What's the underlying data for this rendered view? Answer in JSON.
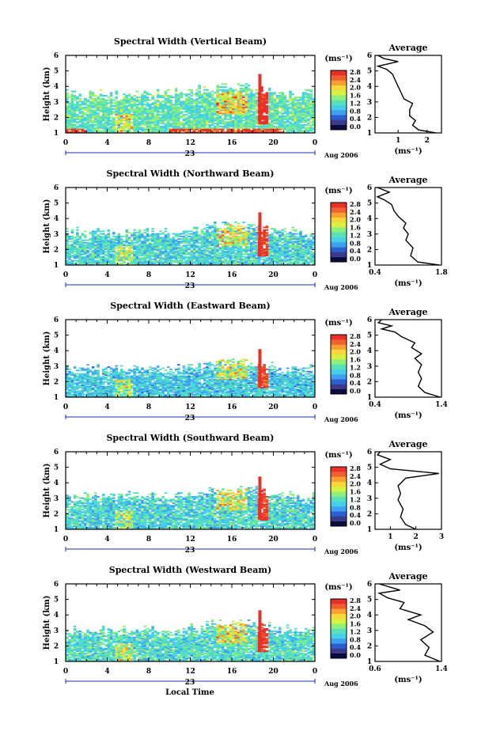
{
  "figure": {
    "x_axis_label": "Local Time",
    "date_label": "Aug 2006",
    "day_label": "23",
    "colorbar_unit": "(ms⁻¹)",
    "average_title": "Average",
    "average_unit": "(ms⁻¹)"
  },
  "colormap": [
    "#0a0a3c",
    "#3a3a8c",
    "#2a5fd0",
    "#3fa0f0",
    "#46d0e8",
    "#58e0b8",
    "#8ef07a",
    "#d8f040",
    "#f8d838",
    "#f8a030",
    "#f06030",
    "#e83028"
  ],
  "chart_data": [
    {
      "type": "heatmap",
      "title": "Spectral Width (Vertical Beam)",
      "ylabel": "Height (km)",
      "xlim": [
        0,
        24
      ],
      "ylim": [
        1,
        6
      ],
      "x_ticks": [
        "0",
        "4",
        "8",
        "12",
        "16",
        "20",
        "0"
      ],
      "y_ticks": [
        "1",
        "2",
        "3",
        "4",
        "5",
        "6"
      ],
      "colorbar": {
        "range": [
          0,
          2.8
        ],
        "ticks": [
          "0.0",
          "0.4",
          "0.8",
          "1.2",
          "1.6",
          "2.0",
          "2.4",
          "2.8"
        ]
      },
      "profile": {
        "title": "Average",
        "xlim": [
          0.2,
          2.5
        ],
        "x_ticks": [
          "1",
          "2"
        ],
        "y_ticks": [
          "1",
          "2",
          "3",
          "4",
          "5",
          "6"
        ],
        "points": [
          [
            2.3,
            1.0
          ],
          [
            1.7,
            1.2
          ],
          [
            1.5,
            1.5
          ],
          [
            1.6,
            1.8
          ],
          [
            1.4,
            2.1
          ],
          [
            1.4,
            2.5
          ],
          [
            1.5,
            2.9
          ],
          [
            1.2,
            3.2
          ],
          [
            1.1,
            3.6
          ],
          [
            1.0,
            4.0
          ],
          [
            0.9,
            4.4
          ],
          [
            0.8,
            4.8
          ],
          [
            0.6,
            5.1
          ],
          [
            0.3,
            5.3
          ],
          [
            1.0,
            5.6
          ],
          [
            0.5,
            5.8
          ],
          [
            0.3,
            6.0
          ]
        ]
      }
    },
    {
      "type": "heatmap",
      "title": "Spectral Width (Northward Beam)",
      "ylabel": "Height (km)",
      "xlim": [
        0,
        24
      ],
      "ylim": [
        1,
        6
      ],
      "x_ticks": [
        "0",
        "4",
        "8",
        "12",
        "16",
        "20",
        "0"
      ],
      "y_ticks": [
        "1",
        "2",
        "3",
        "4",
        "5",
        "6"
      ],
      "colorbar": {
        "range": [
          0,
          2.8
        ],
        "ticks": [
          "0.0",
          "0.4",
          "0.8",
          "1.2",
          "1.6",
          "2.0",
          "2.4",
          "2.8"
        ]
      },
      "profile": {
        "title": "Average",
        "xlim": [
          0.4,
          1.8
        ],
        "x_ticks": [
          "0.4",
          "1.8"
        ],
        "y_ticks": [
          "1",
          "2",
          "3",
          "4",
          "5",
          "6"
        ],
        "points": [
          [
            1.75,
            1.0
          ],
          [
            1.3,
            1.2
          ],
          [
            1.15,
            1.6
          ],
          [
            1.2,
            2.1
          ],
          [
            1.05,
            2.6
          ],
          [
            1.1,
            3.0
          ],
          [
            1.0,
            3.4
          ],
          [
            1.05,
            3.7
          ],
          [
            0.9,
            4.1
          ],
          [
            0.8,
            4.5
          ],
          [
            0.75,
            4.9
          ],
          [
            0.6,
            5.2
          ],
          [
            0.45,
            5.4
          ],
          [
            0.7,
            5.7
          ],
          [
            0.45,
            6.0
          ]
        ]
      }
    },
    {
      "type": "heatmap",
      "title": "Spectral Width (Eastward Beam)",
      "ylabel": "Height (km)",
      "xlim": [
        0,
        24
      ],
      "ylim": [
        1,
        6
      ],
      "x_ticks": [
        "0",
        "4",
        "8",
        "12",
        "16",
        "20",
        "0"
      ],
      "y_ticks": [
        "1",
        "2",
        "3",
        "4",
        "5",
        "6"
      ],
      "colorbar": {
        "range": [
          0,
          2.8
        ],
        "ticks": [
          "0.0",
          "0.4",
          "0.8",
          "1.2",
          "1.6",
          "2.0",
          "2.4",
          "2.8"
        ]
      },
      "profile": {
        "title": "Average",
        "xlim": [
          0.4,
          1.4
        ],
        "x_ticks": [
          "0.4",
          "1.4"
        ],
        "y_ticks": [
          "1",
          "2",
          "3",
          "4",
          "5",
          "6"
        ],
        "points": [
          [
            1.38,
            1.0
          ],
          [
            1.15,
            1.3
          ],
          [
            1.05,
            1.7
          ],
          [
            1.1,
            2.2
          ],
          [
            1.05,
            2.6
          ],
          [
            1.1,
            3.1
          ],
          [
            1.0,
            3.5
          ],
          [
            1.1,
            3.8
          ],
          [
            0.95,
            4.2
          ],
          [
            1.0,
            4.5
          ],
          [
            0.8,
            4.9
          ],
          [
            0.7,
            5.2
          ],
          [
            0.5,
            5.4
          ],
          [
            0.65,
            5.6
          ],
          [
            0.45,
            5.8
          ],
          [
            0.5,
            6.0
          ]
        ]
      }
    },
    {
      "type": "heatmap",
      "title": "Spectral Width (Southward Beam)",
      "ylabel": "Height (km)",
      "xlim": [
        0,
        24
      ],
      "ylim": [
        1,
        6
      ],
      "x_ticks": [
        "0",
        "4",
        "8",
        "12",
        "16",
        "20",
        "0"
      ],
      "y_ticks": [
        "1",
        "2",
        "3",
        "4",
        "5",
        "6"
      ],
      "colorbar": {
        "range": [
          0,
          2.8
        ],
        "ticks": [
          "0.0",
          "0.4",
          "0.8",
          "1.2",
          "1.6",
          "2.0",
          "2.4",
          "2.8"
        ]
      },
      "profile": {
        "title": "Average",
        "xlim": [
          0.4,
          3.0
        ],
        "x_ticks": [
          "1",
          "2",
          "3"
        ],
        "y_ticks": [
          "1",
          "2",
          "3",
          "4",
          "5",
          "6"
        ],
        "points": [
          [
            2.0,
            1.0
          ],
          [
            1.6,
            1.3
          ],
          [
            1.4,
            1.8
          ],
          [
            1.5,
            2.3
          ],
          [
            1.3,
            2.9
          ],
          [
            1.4,
            3.3
          ],
          [
            1.3,
            3.8
          ],
          [
            1.6,
            4.3
          ],
          [
            2.9,
            4.6
          ],
          [
            1.0,
            4.9
          ],
          [
            0.6,
            5.2
          ],
          [
            1.0,
            5.5
          ],
          [
            0.5,
            5.8
          ],
          [
            0.6,
            6.0
          ]
        ]
      }
    },
    {
      "type": "heatmap",
      "title": "Spectral Width (Westward Beam)",
      "ylabel": "Height (km)",
      "xlim": [
        0,
        24
      ],
      "ylim": [
        1,
        6
      ],
      "x_ticks": [
        "0",
        "4",
        "8",
        "12",
        "16",
        "20",
        "0"
      ],
      "y_ticks": [
        "1",
        "2",
        "3",
        "4",
        "5",
        "6"
      ],
      "colorbar": {
        "range": [
          0,
          2.8
        ],
        "ticks": [
          "0.0",
          "0.4",
          "0.8",
          "1.2",
          "1.6",
          "2.0",
          "2.4",
          "2.8"
        ]
      },
      "profile": {
        "title": "Average",
        "xlim": [
          0.6,
          1.4
        ],
        "x_ticks": [
          "0.6",
          "1.4"
        ],
        "y_ticks": [
          "1",
          "2",
          "3",
          "4",
          "5",
          "6"
        ],
        "points": [
          [
            1.38,
            1.0
          ],
          [
            1.2,
            1.4
          ],
          [
            1.25,
            1.9
          ],
          [
            1.15,
            2.4
          ],
          [
            1.3,
            2.9
          ],
          [
            1.2,
            3.3
          ],
          [
            1.0,
            3.7
          ],
          [
            1.15,
            4.0
          ],
          [
            0.9,
            4.4
          ],
          [
            0.95,
            4.8
          ],
          [
            0.75,
            5.1
          ],
          [
            0.65,
            5.4
          ],
          [
            0.9,
            5.6
          ],
          [
            0.65,
            6.0
          ]
        ]
      }
    }
  ]
}
